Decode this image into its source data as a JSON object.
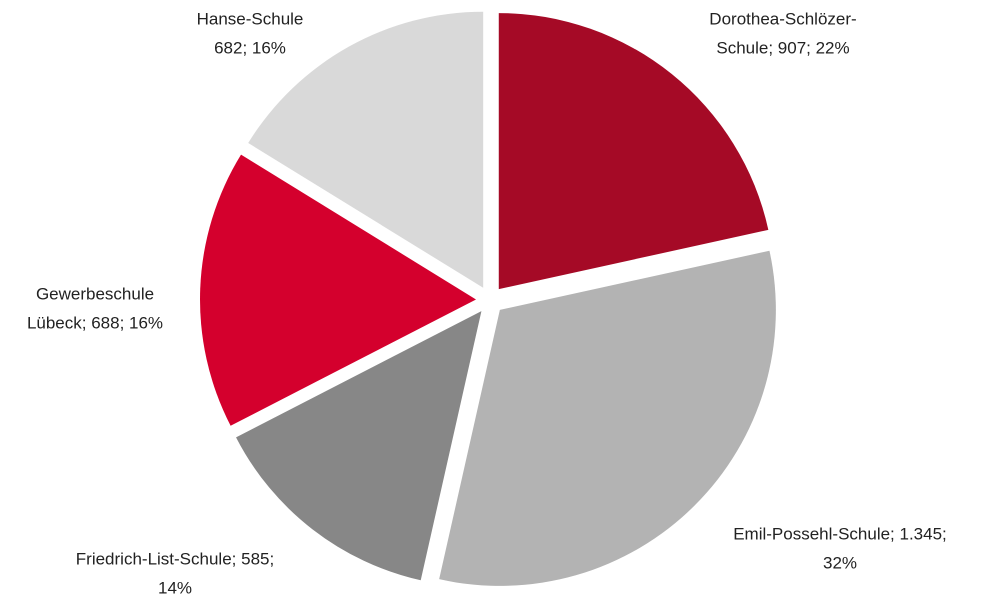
{
  "chart_data": {
    "type": "pie",
    "values": [
      907,
      1345,
      585,
      688,
      682
    ],
    "colors": [
      "#a50a26",
      "#b3b3b3",
      "#878787",
      "#d4002d",
      "#d9d9d9"
    ],
    "labels": [
      [
        "Dorothea-Schlözer-",
        "Schule; 907; 22%"
      ],
      [
        "Emil-Possehl-Schule; 1.345;",
        "32%"
      ],
      [
        "Friedrich-List-Schule; 585;",
        "14%"
      ],
      [
        "Gewerbeschule",
        "Lübeck; 688; 16%"
      ],
      [
        "Hanse-Schule",
        "682; 16%"
      ]
    ]
  }
}
